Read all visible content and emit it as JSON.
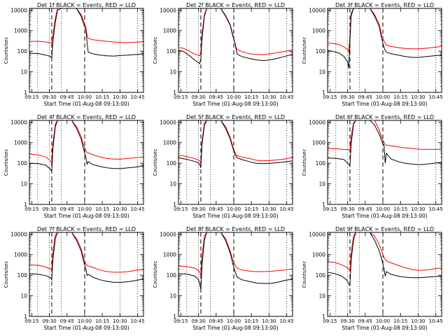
{
  "page": {
    "x_ticks": [
      "09:15",
      "09:30",
      "09:45",
      "10:00",
      "10:15",
      "10:30",
      "10:45"
    ],
    "y_ticks": [
      "1",
      "10",
      "100",
      "1000",
      "10000"
    ],
    "ylabel": "Counts/sec",
    "xlabel": "Start Time (01-Aug-08 09:13:00)"
  },
  "chart_data": [
    {
      "type": "line",
      "title": "Det 1f BLACK = Events, RED = LLD",
      "xlabel": "Start Time (01-Aug-08 09:13:00)",
      "ylabel": "Counts/sec",
      "y_scale": "log",
      "ylim": [
        1,
        12000
      ],
      "x_unit": "minutes after 09:13",
      "xlim": [
        0,
        97
      ],
      "x": [
        0,
        8,
        14,
        18,
        19,
        20,
        22,
        24,
        27,
        30,
        33,
        36,
        40,
        44,
        46,
        48,
        49,
        50,
        54,
        60,
        66,
        72,
        78,
        84,
        88,
        92,
        97
      ],
      "series": [
        {
          "name": "Events",
          "color": "#000000",
          "values": [
            80,
            75,
            65,
            55,
            45,
            300,
            2500,
            10000,
            12000,
            12000,
            12000,
            12000,
            12000,
            5000,
            2200,
            1100,
            280,
            90,
            75,
            65,
            60,
            58,
            62,
            65,
            68,
            70,
            75
          ]
        },
        {
          "name": "LLD",
          "color": "#ff0000",
          "values": [
            300,
            300,
            280,
            260,
            250,
            600,
            4000,
            12000,
            12000,
            12000,
            12000,
            12000,
            12000,
            6000,
            3000,
            1500,
            600,
            420,
            360,
            330,
            300,
            280,
            270,
            265,
            270,
            280,
            290
          ]
        }
      ],
      "vlines_dashed": [
        19,
        47
      ],
      "vlines_dotted": [
        7,
        17,
        27,
        77,
        92
      ]
    },
    {
      "type": "line",
      "title": "Det 2f BLACK = Events, RED = LLD",
      "xlabel": "Start Time (01-Aug-08 09:13:00)",
      "ylabel": "Counts/sec",
      "y_scale": "log",
      "ylim": [
        1,
        12000
      ],
      "x_unit": "minutes after 09:13",
      "xlim": [
        0,
        97
      ],
      "x": [
        0,
        4,
        8,
        12,
        16,
        18,
        19,
        20,
        22,
        24,
        27,
        30,
        36,
        40,
        44,
        46,
        48,
        49,
        50,
        54,
        60,
        66,
        72,
        78,
        84,
        90,
        97
      ],
      "series": [
        {
          "name": "Events",
          "color": "#000000",
          "values": [
            110,
            100,
            70,
            45,
            30,
            25,
            40,
            400,
            5000,
            12000,
            12000,
            12000,
            12000,
            5000,
            1800,
            600,
            250,
            120,
            70,
            55,
            45,
            38,
            35,
            38,
            45,
            55,
            70
          ]
        },
        {
          "name": "LLD",
          "color": "#ff0000",
          "values": [
            150,
            140,
            110,
            80,
            65,
            60,
            90,
            700,
            6000,
            12000,
            12000,
            12000,
            12000,
            5500,
            2000,
            700,
            250,
            150,
            120,
            95,
            75,
            70,
            68,
            75,
            85,
            95,
            115
          ]
        }
      ],
      "vlines_dashed": [
        19,
        47
      ],
      "vlines_dotted": [
        7,
        17,
        27,
        77,
        92
      ]
    },
    {
      "type": "line",
      "title": "Det 3f BLACK = Events, RED = LLD",
      "xlabel": "Start Time (01-Aug-08 09:13:00)",
      "ylabel": "Counts/sec",
      "y_scale": "log",
      "ylim": [
        1,
        12000
      ],
      "x_unit": "minutes after 09:13",
      "xlim": [
        0,
        97
      ],
      "x": [
        0,
        6,
        10,
        14,
        17,
        18,
        19,
        20,
        22,
        24,
        27,
        30,
        36,
        40,
        44,
        46,
        48,
        49,
        50,
        54,
        60,
        66,
        72,
        78,
        84,
        90,
        97
      ],
      "series": [
        {
          "name": "Events",
          "color": "#000000",
          "values": [
            110,
            95,
            80,
            55,
            30,
            15,
            300,
            5000,
            12000,
            12000,
            12000,
            12000,
            12000,
            5000,
            1500,
            400,
            150,
            110,
            90,
            75,
            65,
            55,
            50,
            50,
            55,
            60,
            65
          ]
        },
        {
          "name": "LLD",
          "color": "#ff0000",
          "values": [
            250,
            230,
            210,
            160,
            120,
            90,
            600,
            7000,
            12000,
            12000,
            12000,
            12000,
            12000,
            6000,
            2000,
            600,
            300,
            250,
            200,
            170,
            150,
            135,
            130,
            130,
            140,
            155,
            170
          ]
        }
      ],
      "vlines_dashed": [
        19,
        47
      ],
      "vlines_dotted": [
        7,
        17,
        27,
        77,
        92
      ]
    },
    {
      "type": "line",
      "title": "Det 4f BLACK = Events, RED = LLD",
      "xlabel": "Start Time (01-Aug-08 09:13:00)",
      "ylabel": "Counts/sec",
      "y_scale": "log",
      "ylim": [
        1,
        12000
      ],
      "x_unit": "minutes after 09:13",
      "xlim": [
        0,
        97
      ],
      "x": [
        0,
        8,
        14,
        18,
        19,
        20,
        22,
        24,
        27,
        30,
        36,
        40,
        44,
        46,
        48,
        49,
        50,
        54,
        60,
        66,
        72,
        78,
        84,
        90,
        97
      ],
      "series": [
        {
          "name": "Events",
          "color": "#000000",
          "values": [
            100,
            95,
            80,
            50,
            40,
            500,
            6000,
            12000,
            12000,
            12000,
            12000,
            5000,
            1500,
            500,
            200,
            90,
            120,
            85,
            70,
            60,
            55,
            55,
            60,
            65,
            75
          ]
        },
        {
          "name": "LLD",
          "color": "#ff0000",
          "values": [
            280,
            250,
            200,
            130,
            100,
            900,
            8000,
            12000,
            12000,
            12000,
            12000,
            6000,
            2000,
            800,
            400,
            330,
            320,
            260,
            200,
            170,
            160,
            160,
            170,
            185,
            200
          ]
        }
      ],
      "vlines_dashed": [
        19,
        47
      ],
      "vlines_dotted": [
        7,
        17,
        27,
        77,
        92
      ]
    },
    {
      "type": "line",
      "title": "Det 5f BLACK = Events, RED = LLD",
      "xlabel": "Start Time (01-Aug-08 09:13:00)",
      "ylabel": "Counts/sec",
      "y_scale": "log",
      "ylim": [
        1,
        12000
      ],
      "x_unit": "minutes after 09:13",
      "xlim": [
        0,
        97
      ],
      "x": [
        0,
        6,
        12,
        16,
        18,
        19,
        20,
        22,
        24,
        27,
        30,
        36,
        40,
        44,
        46,
        48,
        50,
        54,
        60,
        66,
        72,
        78,
        84,
        90,
        97
      ],
      "series": [
        {
          "name": "Events",
          "color": "#000000",
          "values": [
            180,
            160,
            130,
            110,
            90,
            60,
            800,
            7000,
            12000,
            12000,
            12000,
            12000,
            5000,
            1500,
            600,
            260,
            180,
            150,
            120,
            100,
            95,
            100,
            105,
            115,
            130
          ]
        },
        {
          "name": "LLD",
          "color": "#ff0000",
          "values": [
            240,
            220,
            180,
            150,
            130,
            100,
            1200,
            9000,
            12000,
            12000,
            12000,
            12000,
            6000,
            1800,
            700,
            320,
            230,
            200,
            170,
            140,
            130,
            135,
            145,
            160,
            190
          ]
        }
      ],
      "vlines_dashed": [
        19,
        47
      ],
      "vlines_dotted": [
        7,
        17,
        27,
        77,
        92
      ]
    },
    {
      "type": "line",
      "title": "Det 6f BLACK = Events, RED = LLD",
      "xlabel": "Start Time (01-Aug-08 09:13:00)",
      "ylabel": "Counts/sec",
      "y_scale": "log",
      "ylim": [
        1,
        12000
      ],
      "x_unit": "minutes after 09:13",
      "xlim": [
        0,
        97
      ],
      "x": [
        0,
        8,
        14,
        18,
        19,
        20,
        22,
        24,
        27,
        30,
        36,
        40,
        44,
        46,
        48,
        49,
        50,
        54,
        60,
        66,
        72,
        78,
        84,
        90,
        97
      ],
      "series": [
        {
          "name": "Events",
          "color": "#000000",
          "values": [
            180,
            170,
            150,
            90,
            70,
            800,
            8000,
            12000,
            12000,
            12000,
            12000,
            7000,
            2500,
            1200,
            700,
            100,
            300,
            160,
            120,
            100,
            90,
            85,
            90,
            100,
            110
          ]
        },
        {
          "name": "LLD",
          "color": "#ff0000",
          "values": [
            520,
            500,
            470,
            450,
            430,
            2000,
            9000,
            12000,
            12000,
            12000,
            12000,
            12000,
            4000,
            1800,
            1000,
            800,
            760,
            700,
            620,
            560,
            520,
            480,
            470,
            470,
            480
          ]
        }
      ],
      "vlines_dashed": [
        19,
        47
      ],
      "vlines_dotted": [
        7,
        17,
        27,
        77,
        92
      ]
    },
    {
      "type": "line",
      "title": "Det 7f BLACK = Events, RED = LLD",
      "xlabel": "Start Time (01-Aug-08 09:13:00)",
      "ylabel": "Counts/sec",
      "y_scale": "log",
      "ylim": [
        1,
        12000
      ],
      "x_unit": "minutes after 09:13",
      "xlim": [
        0,
        97
      ],
      "x": [
        0,
        8,
        14,
        18,
        19,
        20,
        22,
        24,
        27,
        30,
        36,
        40,
        44,
        46,
        48,
        49,
        50,
        54,
        60,
        66,
        72,
        78,
        84,
        90,
        97
      ],
      "series": [
        {
          "name": "Events",
          "color": "#000000",
          "values": [
            120,
            110,
            95,
            75,
            60,
            600,
            6000,
            12000,
            12000,
            12000,
            12000,
            5000,
            1500,
            500,
            200,
            100,
            110,
            80,
            60,
            50,
            45,
            45,
            48,
            55,
            65
          ]
        },
        {
          "name": "LLD",
          "color": "#ff0000",
          "values": [
            320,
            300,
            250,
            200,
            170,
            1200,
            9000,
            12000,
            12000,
            12000,
            12000,
            6000,
            2000,
            700,
            350,
            300,
            280,
            240,
            180,
            150,
            140,
            140,
            150,
            170,
            190
          ]
        }
      ],
      "vlines_dashed": [
        19,
        47
      ],
      "vlines_dotted": [
        7,
        17,
        27,
        77,
        92
      ]
    },
    {
      "type": "line",
      "title": "Det 8f BLACK = Events, RED = LLD",
      "xlabel": "Start Time (01-Aug-08 09:13:00)",
      "ylabel": "Counts/sec",
      "y_scale": "log",
      "ylim": [
        1,
        12000
      ],
      "x_unit": "minutes after 09:13",
      "xlim": [
        0,
        97
      ],
      "x": [
        0,
        8,
        14,
        17,
        18,
        19,
        20,
        22,
        24,
        27,
        30,
        36,
        40,
        44,
        46,
        48,
        50,
        54,
        60,
        66,
        72,
        78,
        84,
        90,
        97
      ],
      "series": [
        {
          "name": "Events",
          "color": "#000000",
          "values": [
            120,
            110,
            90,
            60,
            40,
            20,
            300,
            5000,
            12000,
            12000,
            12000,
            12000,
            5000,
            1200,
            400,
            150,
            80,
            60,
            50,
            42,
            40,
            40,
            45,
            55,
            65
          ]
        },
        {
          "name": "LLD",
          "color": "#ff0000",
          "values": [
            280,
            260,
            220,
            170,
            140,
            100,
            900,
            8000,
            12000,
            12000,
            12000,
            12000,
            6000,
            1500,
            600,
            300,
            220,
            180,
            160,
            150,
            150,
            155,
            165,
            180,
            200
          ]
        }
      ],
      "vlines_dashed": [
        19,
        47
      ],
      "vlines_dotted": [
        7,
        17,
        27,
        77,
        92
      ]
    },
    {
      "type": "line",
      "title": "Det 9f BLACK = Events, RED = LLD",
      "xlabel": "Start Time (01-Aug-08 09:13:00)",
      "ylabel": "Counts/sec",
      "y_scale": "log",
      "ylim": [
        1,
        12000
      ],
      "x_unit": "minutes after 09:13",
      "xlim": [
        0,
        97
      ],
      "x": [
        0,
        6,
        12,
        16,
        18,
        19,
        20,
        22,
        24,
        27,
        30,
        36,
        40,
        44,
        46,
        48,
        49,
        50,
        54,
        60,
        66,
        72,
        78,
        84,
        90,
        97
      ],
      "series": [
        {
          "name": "Events",
          "color": "#000000",
          "values": [
            140,
            120,
            90,
            60,
            40,
            30,
            500,
            5000,
            12000,
            12000,
            12000,
            12000,
            5000,
            1500,
            600,
            200,
            90,
            150,
            110,
            90,
            80,
            75,
            75,
            80,
            85,
            90
          ]
        },
        {
          "name": "LLD",
          "color": "#ff0000",
          "values": [
            450,
            420,
            320,
            250,
            200,
            160,
            1200,
            8000,
            12000,
            12000,
            12000,
            12000,
            8000,
            3000,
            1500,
            700,
            600,
            500,
            400,
            300,
            230,
            190,
            170,
            180,
            200,
            230
          ]
        }
      ],
      "vlines_dashed": [
        19,
        47
      ],
      "vlines_dotted": [
        7,
        17,
        27,
        77,
        92
      ]
    }
  ]
}
